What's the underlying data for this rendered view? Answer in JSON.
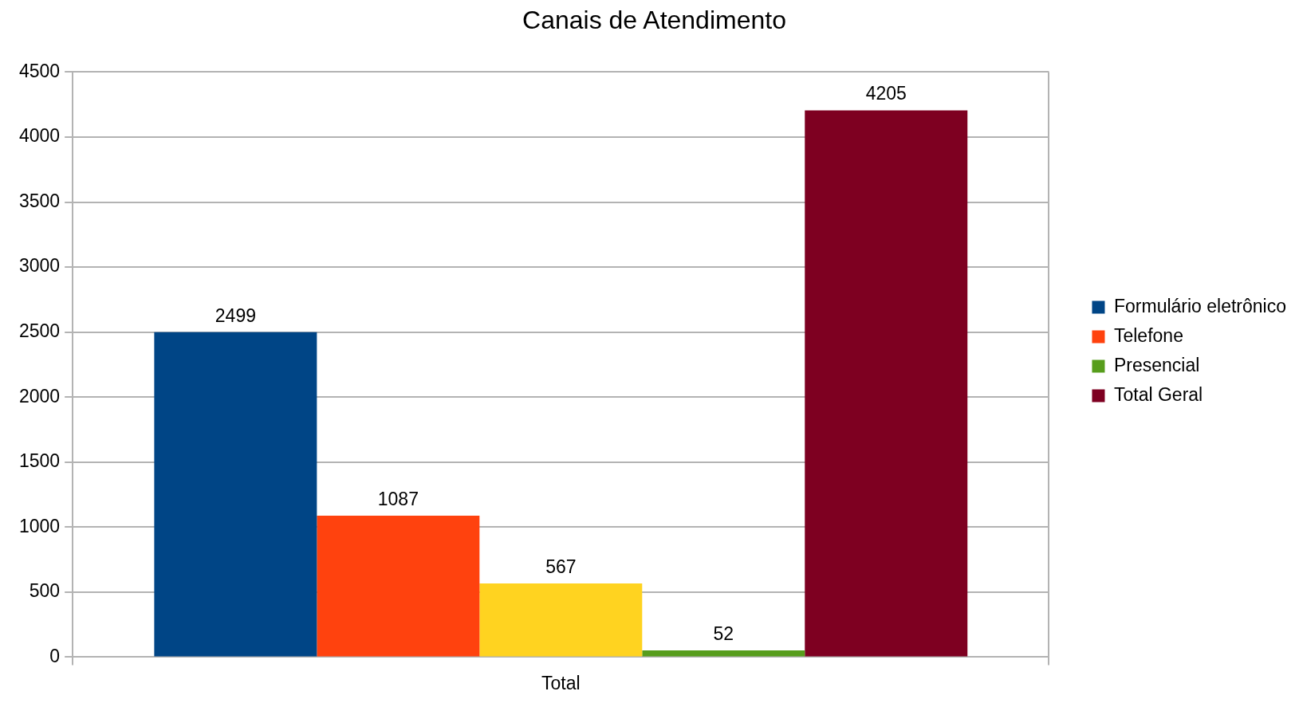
{
  "chart_data": {
    "type": "bar",
    "title": "Canais de Atendimento",
    "categories": [
      "Total"
    ],
    "series": [
      {
        "name": "Formulário eletrônico",
        "color": "#004586",
        "values": [
          2499
        ]
      },
      {
        "name": "Telefone",
        "color": "#ff420e",
        "values": [
          1087
        ]
      },
      {
        "color": "#ffd320",
        "values": [
          567
        ]
      },
      {
        "name": "Presencial",
        "color": "#579d1c",
        "values": [
          52
        ]
      },
      {
        "name": "Total Geral",
        "color": "#7e0021",
        "values": [
          4205
        ]
      }
    ],
    "ylim": [
      0,
      4500
    ],
    "yticks": [
      0,
      500,
      1000,
      1500,
      2000,
      2500,
      3000,
      3500,
      4000,
      4500
    ],
    "grid": "y",
    "legend": "right",
    "data_labels": true
  }
}
